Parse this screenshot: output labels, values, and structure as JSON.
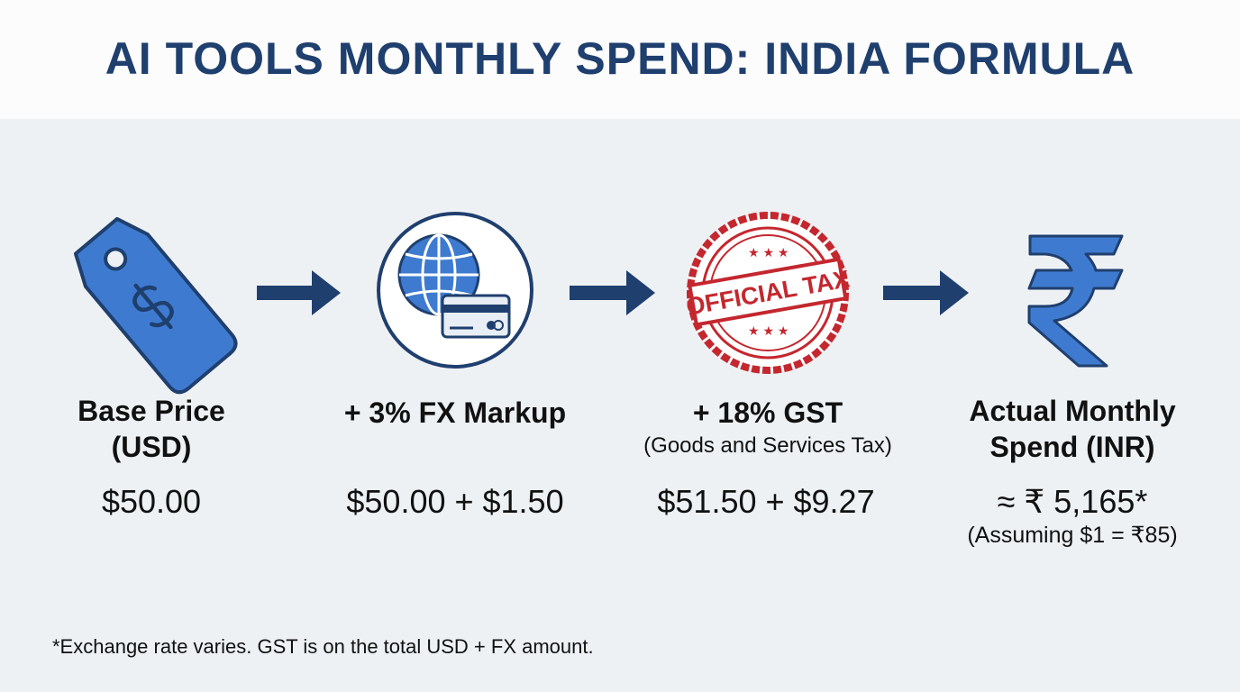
{
  "title": "AI TOOLS MONTHLY SPEND: INDIA FORMULA",
  "steps": [
    {
      "label": "Base Price (USD)",
      "amount": "$50.00"
    },
    {
      "label": "+ 3% FX Markup",
      "amount": "$50.00 + $1.50"
    },
    {
      "label": "+ 18% GST",
      "sublabel": "(Goods and Services Tax)",
      "amount": "$51.50 + $9.27",
      "stamp": "OFFICIAL TAX"
    },
    {
      "label": "Actual Monthly Spend (INR)",
      "amount": "≈ ₹ 5,165*",
      "note": "(Assuming $1 = ₹85)"
    }
  ],
  "footnote": "*Exchange rate varies. GST is on the total USD + FX amount."
}
